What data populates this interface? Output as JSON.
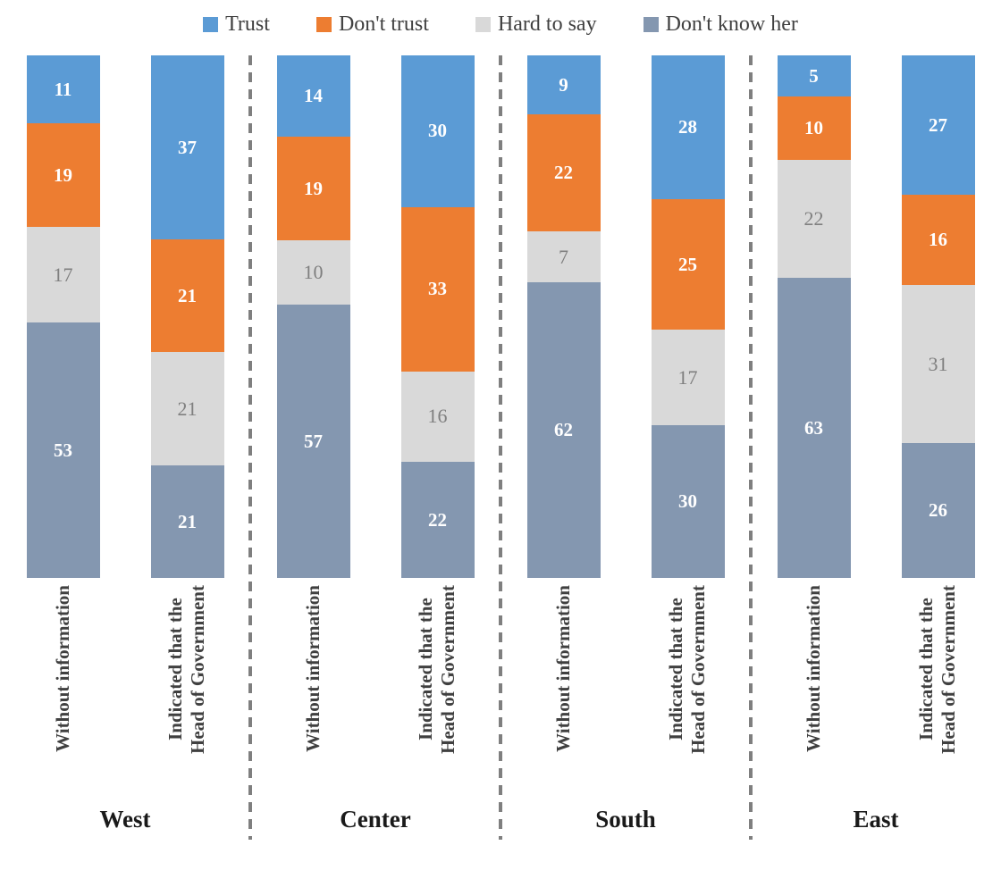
{
  "colors": {
    "trust": "#5B9BD5",
    "dont_trust": "#ED7D31",
    "hard_to_say": "#D9D9D9",
    "dont_know_her": "#8497B0",
    "gray_segment_label": "#7F7F7F",
    "separator": "#7F7F7F",
    "legend_text": "#404040",
    "axis_text": "#404040",
    "region_text": "#1A1A1A",
    "background": "#FFFFFF"
  },
  "chart_data": {
    "type": "bar",
    "variant": "100%-stacked-column",
    "orientation": "vertical",
    "grid": false,
    "legend_position": "top",
    "series_order": [
      "Trust",
      "Don't trust",
      "Hard to say",
      "Don't know her"
    ],
    "series_colors": [
      "#5B9BD5",
      "#ED7D31",
      "#D9D9D9",
      "#8497B0"
    ],
    "legend": [
      {
        "label": "Trust",
        "color": "#5B9BD5"
      },
      {
        "label": "Don't trust",
        "color": "#ED7D31"
      },
      {
        "label": "Hard to say",
        "color": "#D9D9D9"
      },
      {
        "label": "Don't know her",
        "color": "#8497B0"
      }
    ],
    "categories": [
      "Without information",
      "Indicated that the Head of Government"
    ],
    "category_label_lines": [
      [
        "Without information"
      ],
      [
        "Indicated that the",
        "Head of Government"
      ]
    ],
    "groups": [
      {
        "region": "West",
        "bars": [
          {
            "category": "Without information",
            "values": [
              11,
              19,
              17,
              53
            ]
          },
          {
            "category": "Indicated that the Head of Government",
            "values": [
              37,
              21,
              21,
              21
            ]
          }
        ]
      },
      {
        "region": "Center",
        "bars": [
          {
            "category": "Without information",
            "values": [
              14,
              19,
              10,
              57
            ]
          },
          {
            "category": "Indicated that the Head of Government",
            "values": [
              30,
              33,
              16,
              22
            ]
          }
        ]
      },
      {
        "region": "South",
        "bars": [
          {
            "category": "Without information",
            "values": [
              9,
              22,
              7,
              62
            ]
          },
          {
            "category": "Indicated that the Head of Government",
            "values": [
              28,
              25,
              17,
              30
            ]
          }
        ]
      },
      {
        "region": "East",
        "bars": [
          {
            "category": "Without information",
            "values": [
              5,
              10,
              22,
              63
            ]
          },
          {
            "category": "Indicated that the Head of Government",
            "values": [
              27,
              16,
              31,
              26
            ]
          }
        ]
      }
    ]
  }
}
